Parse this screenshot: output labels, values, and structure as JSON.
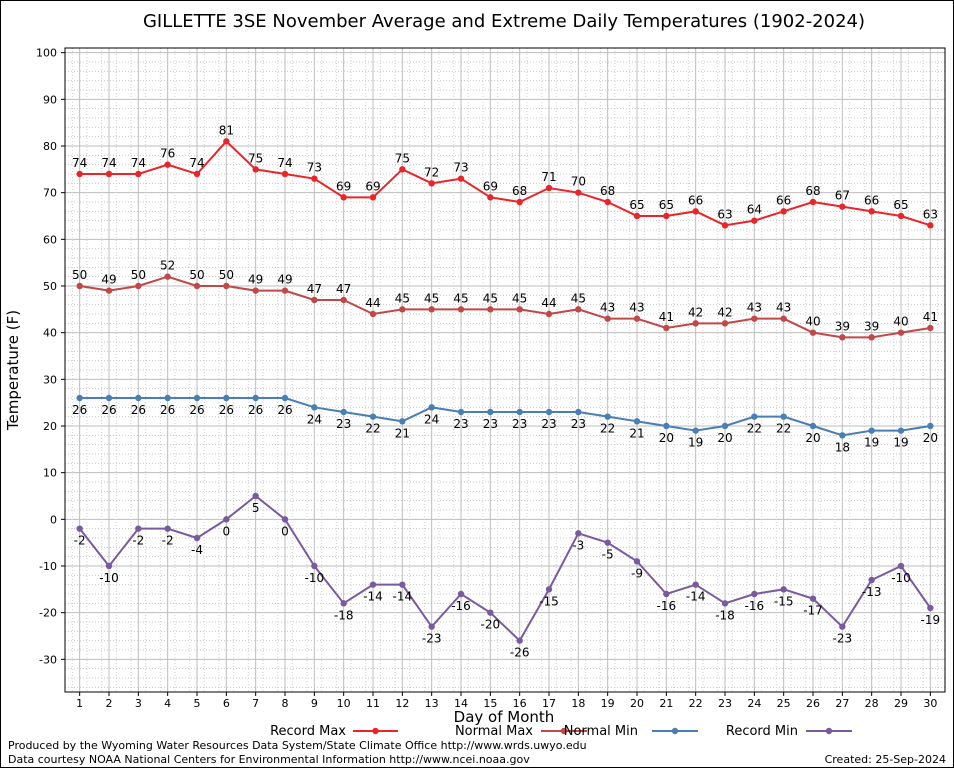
{
  "chart_data": {
    "type": "line",
    "title": "GILLETTE 3SE November Average and Extreme Daily Temperatures (1902-2024)",
    "xlabel": "Day of Month",
    "ylabel": "Temperature (F)",
    "ylim": [
      -37,
      101
    ],
    "yticks": [
      -30,
      -20,
      -10,
      0,
      10,
      20,
      30,
      40,
      50,
      60,
      70,
      80,
      90,
      100
    ],
    "x": [
      1,
      2,
      3,
      4,
      5,
      6,
      7,
      8,
      9,
      10,
      11,
      12,
      13,
      14,
      15,
      16,
      17,
      18,
      19,
      20,
      21,
      22,
      23,
      24,
      25,
      26,
      27,
      28,
      29,
      30
    ],
    "grid": true,
    "series": [
      {
        "name": "Record Max",
        "color": "#e8262a",
        "values": [
          74,
          74,
          74,
          76,
          74,
          81,
          75,
          74,
          73,
          69,
          69,
          75,
          72,
          73,
          69,
          68,
          71,
          70,
          68,
          65,
          65,
          66,
          63,
          64,
          66,
          68,
          67,
          66,
          65,
          63
        ]
      },
      {
        "name": "Normal Max",
        "color": "#c04848",
        "values": [
          50,
          49,
          50,
          52,
          50,
          50,
          49,
          49,
          47,
          47,
          44,
          45,
          45,
          45,
          45,
          45,
          44,
          45,
          43,
          43,
          41,
          42,
          42,
          43,
          43,
          40,
          39,
          39,
          40,
          41
        ]
      },
      {
        "name": "Normal Min",
        "color": "#4a7fb5",
        "values": [
          26,
          26,
          26,
          26,
          26,
          26,
          26,
          26,
          24,
          23,
          22,
          21,
          24,
          23,
          23,
          23,
          23,
          23,
          22,
          21,
          20,
          19,
          20,
          22,
          22,
          20,
          18,
          19,
          19,
          20
        ]
      },
      {
        "name": "Record Min",
        "color": "#7a5a9e",
        "values": [
          -2,
          -10,
          -2,
          -2,
          -4,
          0,
          5,
          0,
          -10,
          -18,
          -14,
          -14,
          -23,
          -16,
          -20,
          -26,
          -15,
          -3,
          -5,
          -9,
          -16,
          -14,
          -18,
          -16,
          -15,
          -17,
          -23,
          -13,
          -10,
          -19
        ]
      }
    ],
    "data_labels": {
      "Record Max": [
        "74",
        "74",
        "74",
        "76",
        "74",
        "81",
        "75",
        "74",
        "73",
        "69",
        "69",
        "75",
        "72",
        "73",
        "69",
        "68",
        "71",
        "70",
        "68",
        "65",
        "65",
        "66",
        "63",
        "64",
        "66",
        "68",
        "67",
        "66",
        "65",
        "63"
      ],
      "Normal Max": [
        "50",
        "49",
        "50",
        "52",
        "50",
        "50",
        "49",
        "49",
        "47",
        "47",
        "44",
        "45",
        "45",
        "45",
        "45",
        "45",
        "44",
        "45",
        "43",
        "43",
        "41",
        "42",
        "42",
        "43",
        "43",
        "40",
        "39",
        "39",
        "40",
        "41"
      ],
      "Normal Min": [
        "26",
        "26",
        "26",
        "26",
        "26",
        "26",
        "26",
        "26",
        "24",
        "23",
        "22",
        "21",
        "24",
        "23",
        "23",
        "23",
        "23",
        "23",
        "22",
        "21",
        "20",
        "19",
        "20",
        "22",
        "22",
        "20",
        "18",
        "19",
        "19",
        "20"
      ],
      "Record Min": [
        "-2",
        "-10",
        "-2",
        "-2",
        "-4",
        "0",
        "5",
        "0",
        "-10",
        "-18",
        "-14",
        "-14",
        "-23",
        "-16",
        "-20",
        "-26",
        "-15",
        "-3",
        "-5",
        "-9",
        "-16",
        "-14",
        "-18",
        "-16",
        "-15",
        "-17",
        "-23",
        "-13",
        "-10",
        "-19"
      ]
    },
    "legend_placement": "bottom"
  },
  "footer": {
    "produced_by": "Produced by the Wyoming Water Resources Data System/State Climate Office http://www.wrds.uwyo.edu",
    "courtesy": "Data courtesy NOAA National Centers for Environmental Information http://www.ncei.noaa.gov",
    "created": "Created:  25-Sep-2024"
  }
}
